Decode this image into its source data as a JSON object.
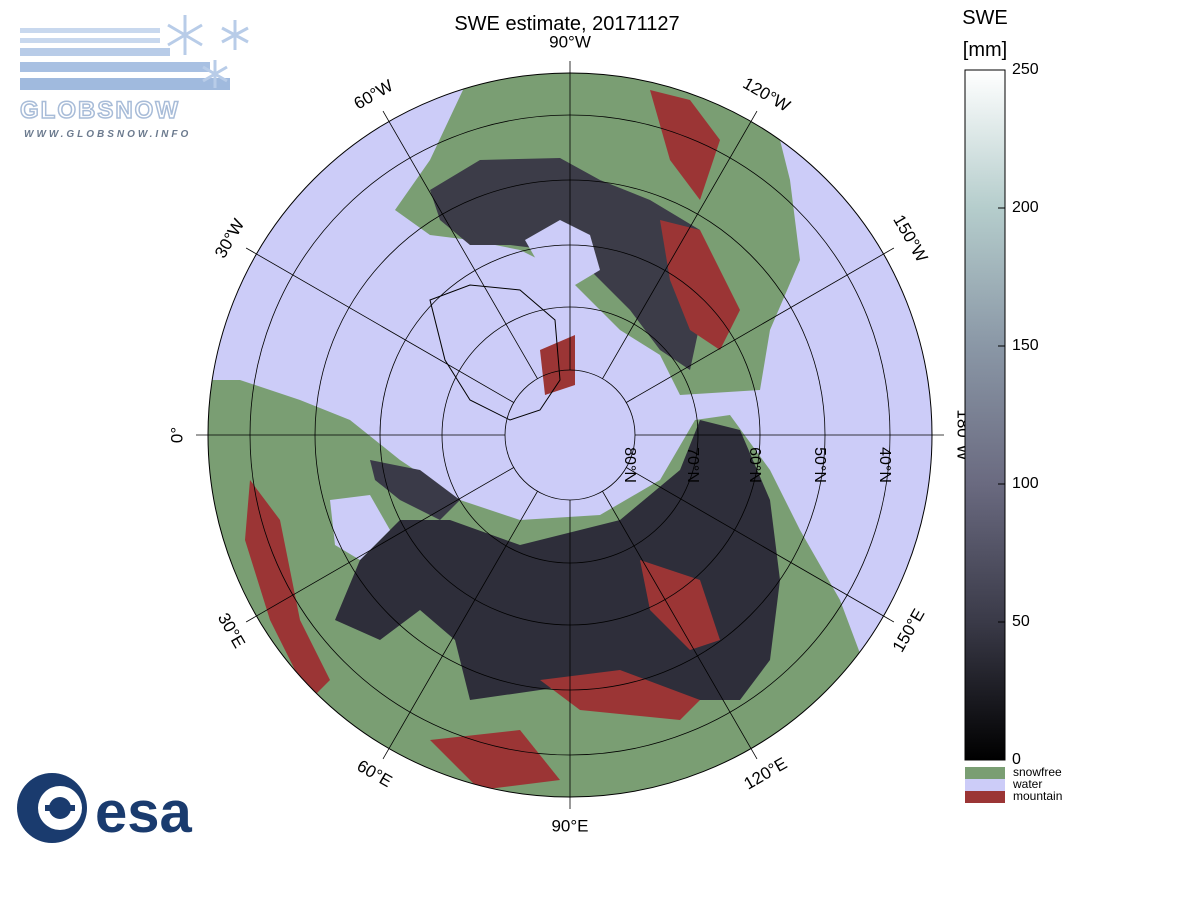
{
  "title": "SWE estimate, 20171127",
  "logo": {
    "name": "GLOBSNOW",
    "url": "WWW.GLOBSNOW.INFO",
    "agency": "esa"
  },
  "map": {
    "meridians": [
      {
        "value": -90,
        "label": "90°W"
      },
      {
        "value": -120,
        "label": "120°W"
      },
      {
        "value": -150,
        "label": "150°W"
      },
      {
        "value": 180,
        "label": "180°W"
      },
      {
        "value": 150,
        "label": "150°E"
      },
      {
        "value": 120,
        "label": "120°E"
      },
      {
        "value": 90,
        "label": "90°E"
      },
      {
        "value": 60,
        "label": "60°E"
      },
      {
        "value": 30,
        "label": "30°E"
      },
      {
        "value": 0,
        "label": "0°"
      },
      {
        "value": -30,
        "label": "30°W"
      },
      {
        "value": -60,
        "label": "60°W"
      }
    ],
    "parallels": [
      {
        "value": 80,
        "label": "80°N"
      },
      {
        "value": 70,
        "label": "70°N"
      },
      {
        "value": 60,
        "label": "60°N"
      },
      {
        "value": 50,
        "label": "50°N"
      },
      {
        "value": 40,
        "label": "40°N"
      }
    ]
  },
  "colorbar": {
    "title": "SWE",
    "unit": "[mm]",
    "lim": [
      0,
      250
    ],
    "ticks": [
      0,
      50,
      100,
      150,
      200,
      250
    ],
    "colors": [
      "#000000",
      "#3a3a48",
      "#6a6a80",
      "#8a97a6",
      "#b5cdcc",
      "#ffffff"
    ]
  },
  "legend": [
    {
      "name": "snowfree",
      "color": "#7a9e73"
    },
    {
      "name": "water",
      "color": "#ccccf8"
    },
    {
      "name": "mountain",
      "color": "#9b3535"
    }
  ]
}
